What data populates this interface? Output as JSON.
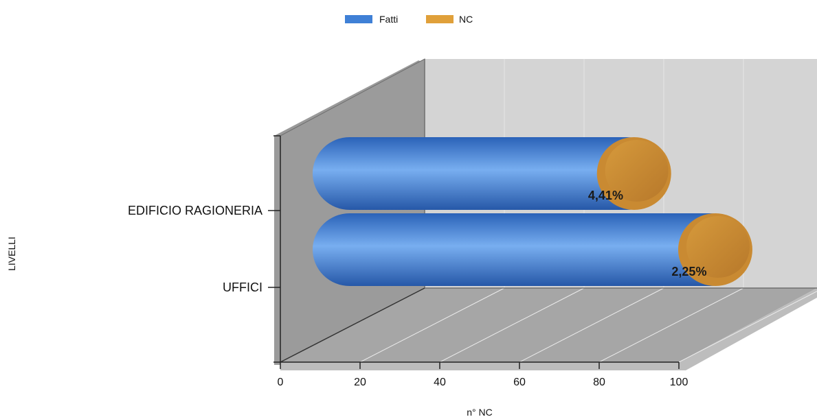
{
  "chart_data": {
    "type": "bar",
    "orientation": "horizontal",
    "style": "3d-cylinder",
    "stacked": true,
    "categories": [
      "EDIFICIO RAGIONERIA",
      "UFFICI"
    ],
    "series": [
      {
        "name": "Fatti",
        "color": "#3f80d6",
        "values": [
          95.59,
          97.75
        ]
      },
      {
        "name": "NC",
        "color": "#e0a03a",
        "values": [
          4.41,
          2.25
        ]
      }
    ],
    "data_labels": [
      "4,41%",
      "2,25%"
    ],
    "x_ticks": [
      "0",
      "20",
      "40",
      "60",
      "80",
      "100"
    ],
    "xlim": [
      0,
      100
    ],
    "xlabel": "n° NC",
    "ylabel": "LIVELLI",
    "grid": true,
    "legend_position": "top-center"
  }
}
